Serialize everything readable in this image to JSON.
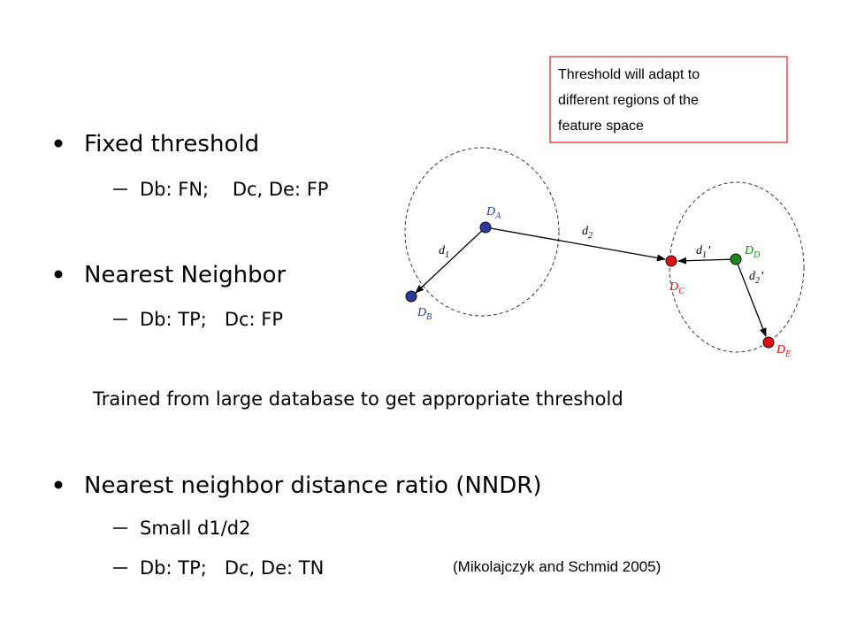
{
  "bullets": [
    {
      "text": "Fixed threshold",
      "subitems": [
        "Db: FN;    Dc, De: FP"
      ]
    },
    {
      "text": "Nearest Neighbor",
      "subitems": [
        "Db: TP;   Dc: FP"
      ]
    },
    {
      "text": "Nearest neighbor distance ratio (NNDR)",
      "subitems": [
        "Small d1/d2",
        "Db: TP;   Dc, De: TN"
      ]
    }
  ],
  "note": "Trained from large database to get appropriate threshold",
  "citation": "(Mikolajczyk and Schmid 2005)",
  "callout": [
    "Threshold will adapt to",
    "different regions of the",
    "feature space"
  ],
  "diagram": {
    "nodes": [
      {
        "base": "D",
        "sub": "A"
      },
      {
        "base": "D",
        "sub": "B"
      },
      {
        "base": "D",
        "sub": "C"
      },
      {
        "base": "D",
        "sub": "D"
      },
      {
        "base": "D",
        "sub": "E"
      }
    ],
    "edges": [
      {
        "base": "d",
        "sub": "1",
        "suffix": ""
      },
      {
        "base": "d",
        "sub": "2",
        "suffix": ""
      },
      {
        "base": "d",
        "sub": "1",
        "suffix": "’"
      },
      {
        "base": "d",
        "sub": "2",
        "suffix": "’"
      }
    ]
  }
}
